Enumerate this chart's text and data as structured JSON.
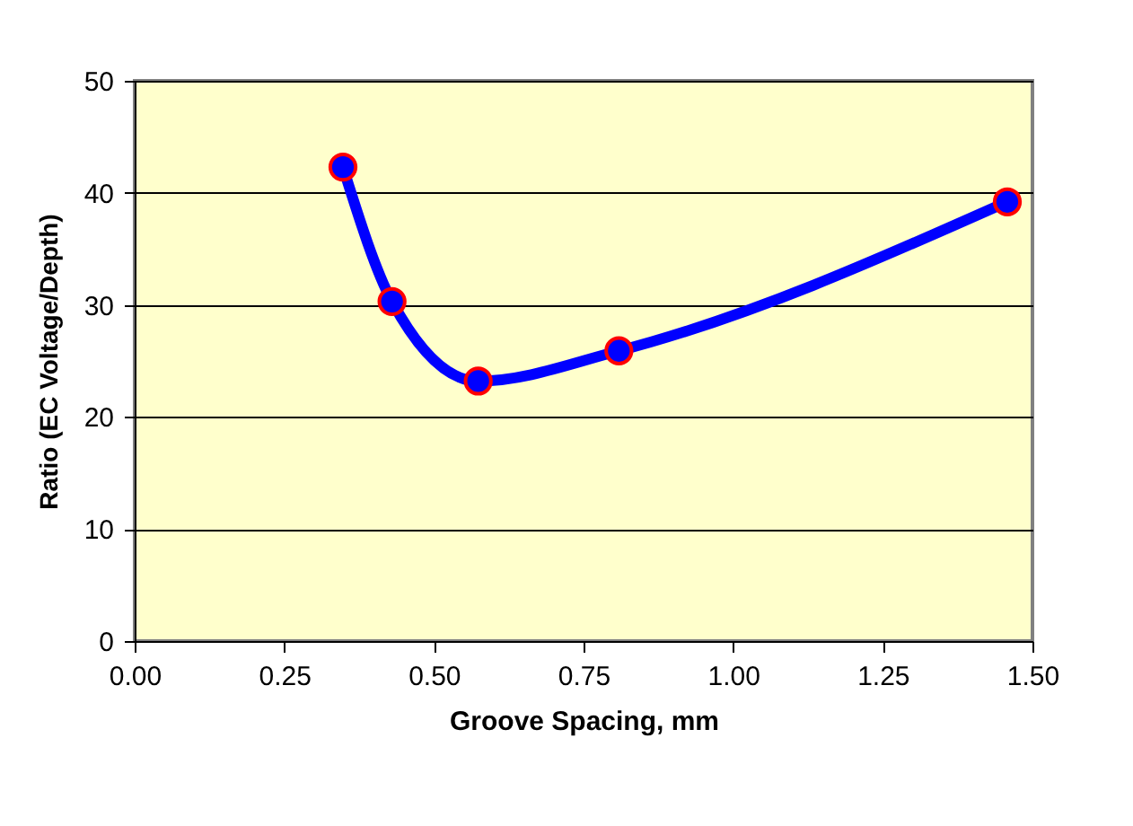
{
  "chart_data": {
    "type": "line",
    "xlabel": "Groove Spacing, mm",
    "ylabel": "Ratio (EC Voltage/Depth)",
    "x": [
      0.348,
      0.43,
      0.574,
      0.809,
      1.458
    ],
    "series": [
      {
        "color": "#0000ff",
        "values": [
          42.3,
          30.3,
          23.2,
          25.9,
          39.2
        ]
      }
    ],
    "xlim": [
      0,
      1.5
    ],
    "xticks": [
      {
        "value": 0,
        "label": "0.00"
      },
      {
        "value": 0.25,
        "label": "0.25"
      },
      {
        "value": 0.5,
        "label": "0.50"
      },
      {
        "value": 0.75,
        "label": "0.75"
      },
      {
        "value": 1,
        "label": "1.00"
      },
      {
        "value": 1.25,
        "label": "1.25"
      },
      {
        "value": 1.5,
        "label": "1.50"
      }
    ],
    "ylim": [
      0,
      50
    ],
    "yticks": [
      0,
      10,
      20,
      30,
      40,
      50
    ],
    "grid": "y",
    "marker": "circle",
    "line_style": "solid"
  }
}
